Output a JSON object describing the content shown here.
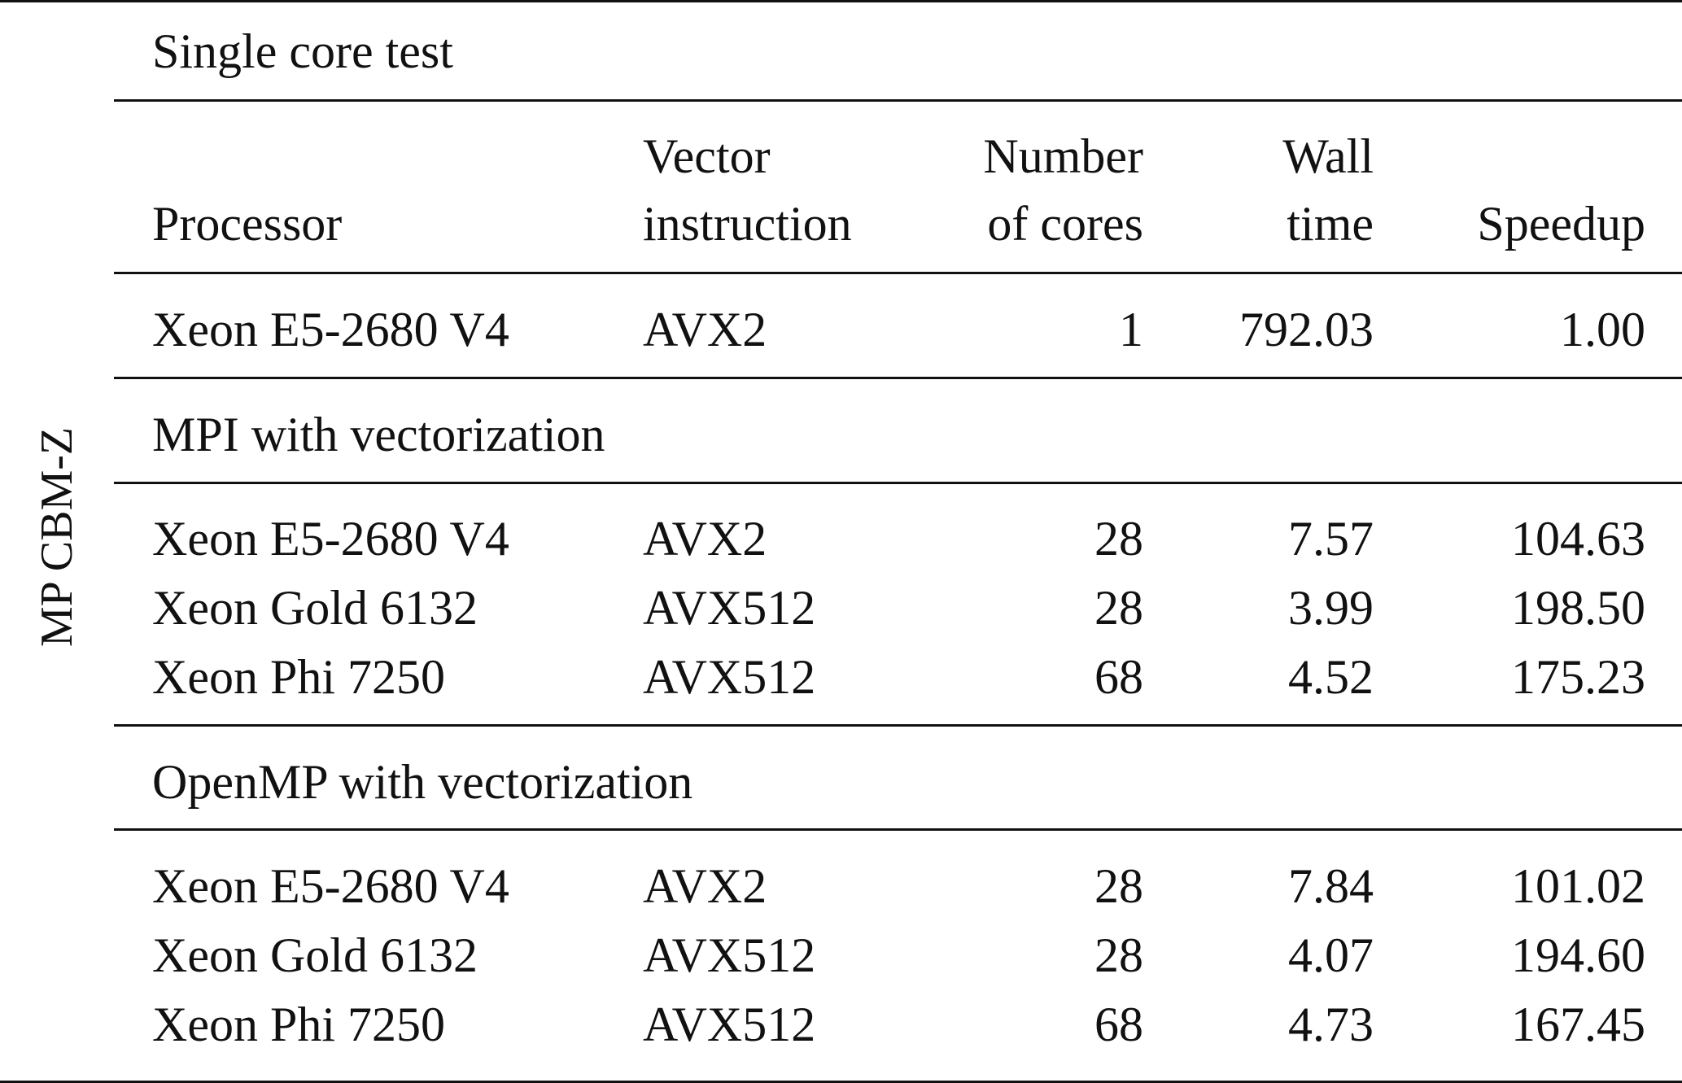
{
  "side_label": "MP CBM-Z",
  "header": {
    "processor": "Processor",
    "vector_line1": "Vector",
    "vector_line2": "instruction",
    "cores_line1": "Number",
    "cores_line2": "of cores",
    "wall_line1": "Wall",
    "wall_line2": "time",
    "speedup": "Speedup"
  },
  "sections": [
    {
      "title": "Single core test",
      "rows": [
        {
          "processor": "Xeon E5-2680 V4",
          "vector": "AVX2",
          "cores": "1",
          "wall": "792.03",
          "speedup": "1.00"
        }
      ]
    },
    {
      "title": "MPI with vectorization",
      "rows": [
        {
          "processor": "Xeon E5-2680 V4",
          "vector": "AVX2",
          "cores": "28",
          "wall": "7.57",
          "speedup": "104.63"
        },
        {
          "processor": "Xeon Gold 6132",
          "vector": "AVX512",
          "cores": "28",
          "wall": "3.99",
          "speedup": "198.50"
        },
        {
          "processor": "Xeon Phi 7250",
          "vector": "AVX512",
          "cores": "68",
          "wall": "4.52",
          "speedup": "175.23"
        }
      ]
    },
    {
      "title": "OpenMP with vectorization",
      "rows": [
        {
          "processor": "Xeon E5-2680 V4",
          "vector": "AVX2",
          "cores": "28",
          "wall": "7.84",
          "speedup": "101.02"
        },
        {
          "processor": "Xeon Gold 6132",
          "vector": "AVX512",
          "cores": "28",
          "wall": "4.07",
          "speedup": "194.60"
        },
        {
          "processor": "Xeon Phi 7250",
          "vector": "AVX512",
          "cores": "68",
          "wall": "4.73",
          "speedup": "167.45"
        }
      ]
    }
  ]
}
